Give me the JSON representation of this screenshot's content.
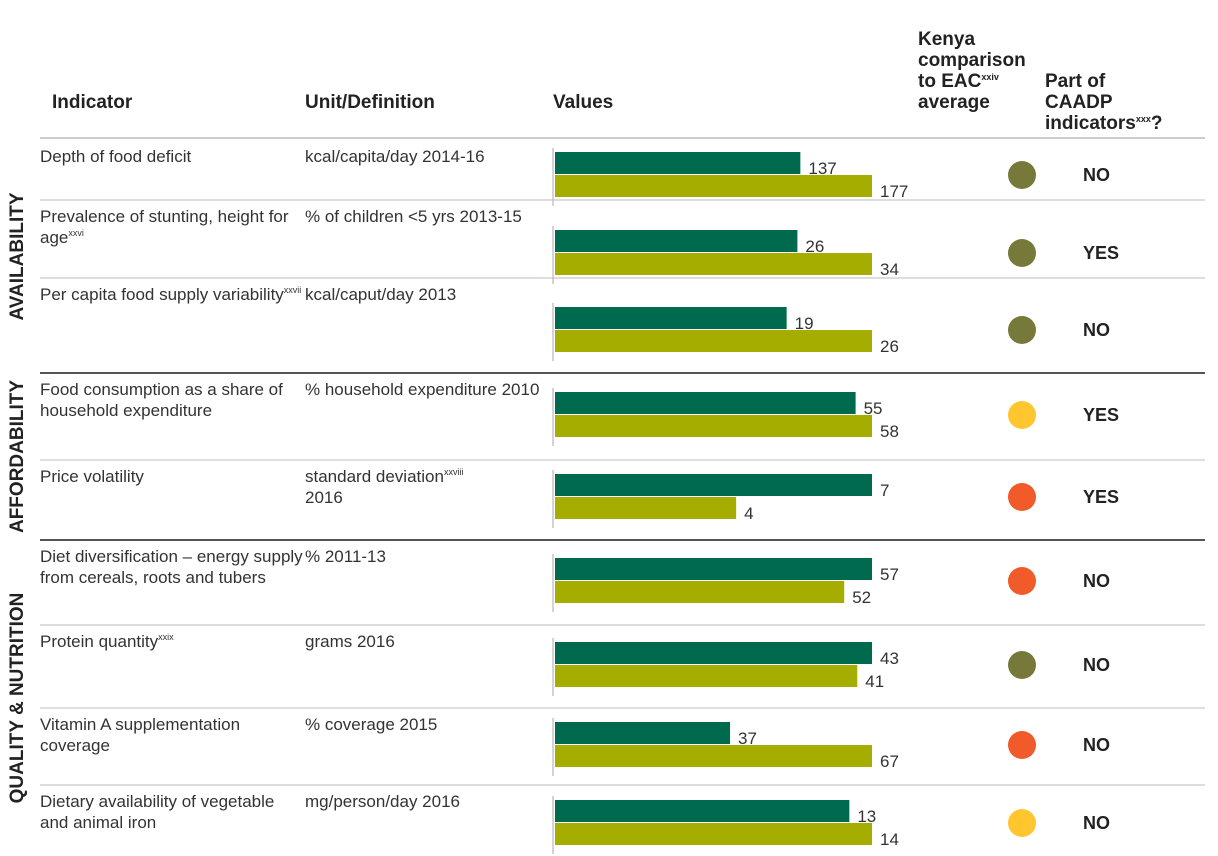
{
  "header": {
    "indicator": "Indicator",
    "unit": "Unit/Definition",
    "values": "Values",
    "comparison": {
      "lines": [
        "Kenya",
        "comparison",
        "to EAC"
      ],
      "sup": "xxiv",
      "after": "average"
    },
    "caadp": {
      "lines": [
        "Part of",
        "CAADP",
        "indicators"
      ],
      "sup": "xxx",
      "after": "?"
    }
  },
  "colors": {
    "kenya": "#006a4e",
    "eac": "#a5ad00"
  },
  "groups": [
    {
      "label": "AVAILABILITY",
      "rows": [
        {
          "indicator": "Depth of food deficit",
          "unit": "kcal/capita/day 2014-16",
          "values": [
            137,
            177
          ],
          "comparison_color": "#76793a",
          "caadp": "NO"
        },
        {
          "indicator": "Prevalence of stunting, height for age",
          "indicator_sup": "xxvi",
          "unit": "% of children <5 yrs 2013-15",
          "values": [
            26,
            34
          ],
          "comparison_color": "#76793a",
          "caadp": "YES"
        },
        {
          "indicator": "Per capita food supply variability",
          "indicator_sup": "xxvii",
          "unit": "kcal/caput/day 2013",
          "values": [
            19,
            26
          ],
          "comparison_color": "#76793a",
          "caadp": "NO"
        }
      ]
    },
    {
      "label": "AFFORDABILITY",
      "rows": [
        {
          "indicator": "Food consumption as a share of household expenditure",
          "unit": "% household expenditure 2010",
          "values": [
            55,
            58
          ],
          "comparison_color": "#ffc62f",
          "caadp": "YES"
        },
        {
          "indicator": "Price volatility",
          "unit": "standard deviation",
          "unit_sup": "xxviii",
          "unit_after": "2016",
          "values": [
            7,
            4
          ],
          "comparison_color": "#f15a29",
          "caadp": "YES"
        }
      ]
    },
    {
      "label": "QUALITY & NUTRITION",
      "rows": [
        {
          "indicator": "Diet diversification – energy supply from cereals, roots and tubers",
          "unit": "% 2011-13",
          "values": [
            57,
            52
          ],
          "comparison_color": "#f15a29",
          "caadp": "NO"
        },
        {
          "indicator": "Protein quantity",
          "indicator_sup": "xxix",
          "unit": "grams 2016",
          "values": [
            43,
            41
          ],
          "comparison_color": "#76793a",
          "caadp": "NO"
        },
        {
          "indicator": "Vitamin A supplementation coverage",
          "unit": "% coverage 2015",
          "values": [
            37,
            67
          ],
          "comparison_color": "#f15a29",
          "caadp": "NO"
        },
        {
          "indicator": "Dietary availability of vegetable and animal iron",
          "unit": "mg/person/day 2016",
          "values": [
            13,
            14
          ],
          "comparison_color": "#ffc62f",
          "caadp": "NO"
        }
      ]
    }
  ]
}
